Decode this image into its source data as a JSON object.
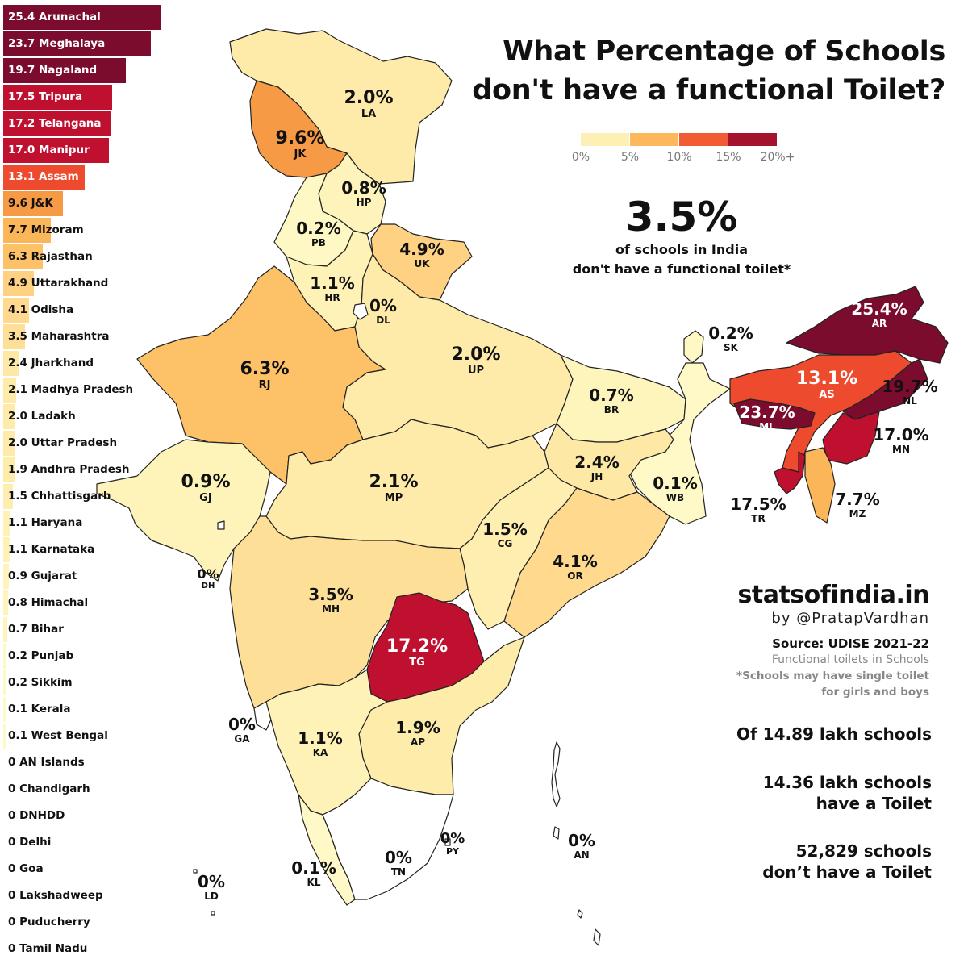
{
  "title_line1": "What Percentage of Schools",
  "title_line2": "don't have a functional Toilet?",
  "legend": {
    "ticks": [
      "0%",
      "5%",
      "10%",
      "15%",
      "20%+"
    ],
    "colors": [
      "#fdf0b4",
      "#fcb85a",
      "#f25c34",
      "#a5122b"
    ]
  },
  "national": {
    "value": "3.5%",
    "caption_line1": "of schools in India",
    "caption_line2": "don't have a functional toilet*"
  },
  "ranking": [
    {
      "label": "25.4 Arunachal",
      "value": 25.4,
      "color": "#7b0c2e"
    },
    {
      "label": "23.7 Meghalaya",
      "value": 23.7,
      "color": "#7b0c2e"
    },
    {
      "label": "19.7 Nagaland",
      "value": 19.7,
      "color": "#7b0c2e"
    },
    {
      "label": "17.5 Tripura",
      "value": 17.5,
      "color": "#c0102f"
    },
    {
      "label": "17.2 Telangana",
      "value": 17.2,
      "color": "#c0102f"
    },
    {
      "label": "17.0 Manipur",
      "value": 17.0,
      "color": "#c0102f"
    },
    {
      "label": "13.1 Assam",
      "value": 13.1,
      "color": "#ee4a2e"
    },
    {
      "label": "9.6 J&K",
      "value": 9.6,
      "color": "#f79a45"
    },
    {
      "label": "7.7 Mizoram",
      "value": 7.7,
      "color": "#fbb659"
    },
    {
      "label": "6.3 Rajasthan",
      "value": 6.3,
      "color": "#fdc167"
    },
    {
      "label": "4.9 Uttarakhand",
      "value": 4.9,
      "color": "#fed183"
    },
    {
      "label": "4.1 Odisha",
      "value": 4.1,
      "color": "#fed98e"
    },
    {
      "label": "3.5 Maharashtra",
      "value": 3.5,
      "color": "#fedf97"
    },
    {
      "label": "2.4 Jharkhand",
      "value": 2.4,
      "color": "#fee8a6"
    },
    {
      "label": "2.1 Madhya Pradesh",
      "value": 2.1,
      "color": "#feeaa9"
    },
    {
      "label": "2.0 Ladakh",
      "value": 2.0,
      "color": "#feeba9"
    },
    {
      "label": "2.0 Uttar Pradesh",
      "value": 2.0,
      "color": "#feeba9"
    },
    {
      "label": "1.9 Andhra Pradesh",
      "value": 1.9,
      "color": "#feecab"
    },
    {
      "label": "1.5 Chhattisgarh",
      "value": 1.5,
      "color": "#feefb1"
    },
    {
      "label": "1.1 Haryana",
      "value": 1.1,
      "color": "#fef2b7"
    },
    {
      "label": "1.1 Karnataka",
      "value": 1.1,
      "color": "#fef2b7"
    },
    {
      "label": "0.9 Gujarat",
      "value": 0.9,
      "color": "#fef3b9"
    },
    {
      "label": "0.8 Himachal",
      "value": 0.8,
      "color": "#fef4bb"
    },
    {
      "label": "0.7 Bihar",
      "value": 0.7,
      "color": "#fef5bd"
    },
    {
      "label": "0.2 Punjab",
      "value": 0.2,
      "color": "#fef8c4"
    },
    {
      "label": "0.2 Sikkim",
      "value": 0.2,
      "color": "#fef8c4"
    },
    {
      "label": "0.1 Kerala",
      "value": 0.1,
      "color": "#fef9c6"
    },
    {
      "label": "0.1 West Bengal",
      "value": 0.1,
      "color": "#fef9c6"
    },
    {
      "label": "0 AN Islands",
      "value": 0,
      "color": "#ffffff"
    },
    {
      "label": "0 Chandigarh",
      "value": 0,
      "color": "#ffffff"
    },
    {
      "label": "0 DNHDD",
      "value": 0,
      "color": "#ffffff"
    },
    {
      "label": "0 Delhi",
      "value": 0,
      "color": "#ffffff"
    },
    {
      "label": "0 Goa",
      "value": 0,
      "color": "#ffffff"
    },
    {
      "label": "0 Lakshadweep",
      "value": 0,
      "color": "#ffffff"
    },
    {
      "label": "0 Puducherry",
      "value": 0,
      "color": "#ffffff"
    },
    {
      "label": "0 Tamil Nadu",
      "value": 0,
      "color": "#ffffff"
    }
  ],
  "map_labels": [
    {
      "code": "LA",
      "value": "2.0%"
    },
    {
      "code": "JK",
      "value": "9.6%"
    },
    {
      "code": "HP",
      "value": "0.8%"
    },
    {
      "code": "PB",
      "value": "0.2%"
    },
    {
      "code": "UK",
      "value": "4.9%"
    },
    {
      "code": "HR",
      "value": "1.1%"
    },
    {
      "code": "DL",
      "value": "0%"
    },
    {
      "code": "RJ",
      "value": "6.3%"
    },
    {
      "code": "UP",
      "value": "2.0%"
    },
    {
      "code": "BR",
      "value": "0.7%"
    },
    {
      "code": "SK",
      "value": "0.2%"
    },
    {
      "code": "AR",
      "value": "25.4%"
    },
    {
      "code": "AS",
      "value": "13.1%"
    },
    {
      "code": "NL",
      "value": "19.7%"
    },
    {
      "code": "ML",
      "value": "23.7%"
    },
    {
      "code": "MN",
      "value": "17.0%"
    },
    {
      "code": "TR",
      "value": "17.5%"
    },
    {
      "code": "MZ",
      "value": "7.7%"
    },
    {
      "code": "GJ",
      "value": "0.9%"
    },
    {
      "code": "MP",
      "value": "2.1%"
    },
    {
      "code": "JH",
      "value": "2.4%"
    },
    {
      "code": "WB",
      "value": "0.1%"
    },
    {
      "code": "CG",
      "value": "1.5%"
    },
    {
      "code": "OR",
      "value": "4.1%"
    },
    {
      "code": "DH",
      "value": "0%"
    },
    {
      "code": "MH",
      "value": "3.5%"
    },
    {
      "code": "TG",
      "value": "17.2%"
    },
    {
      "code": "GA",
      "value": "0%"
    },
    {
      "code": "KA",
      "value": "1.1%"
    },
    {
      "code": "AP",
      "value": "1.9%"
    },
    {
      "code": "PY",
      "value": "0%"
    },
    {
      "code": "AN",
      "value": "0%"
    },
    {
      "code": "TN",
      "value": "0%"
    },
    {
      "code": "KL",
      "value": "0.1%"
    },
    {
      "code": "LD",
      "value": "0%"
    }
  ],
  "brand": {
    "site": "statsofindia.in",
    "byline": "by @PratapVardhan"
  },
  "source": {
    "title": "Source: UDISE 2021-22",
    "subtitle": "Functional toilets in Schools",
    "note_line1": "*Schools may have single toilet",
    "note_line2": "for girls and boys"
  },
  "stats": {
    "total": "Of 14.89 lakh schools",
    "with_toilet_line1": "14.36 lakh schools",
    "with_toilet_line2": "have a Toilet",
    "without_toilet_line1": "52,829 schools",
    "without_toilet_line2": "don’t have a Toilet"
  }
}
